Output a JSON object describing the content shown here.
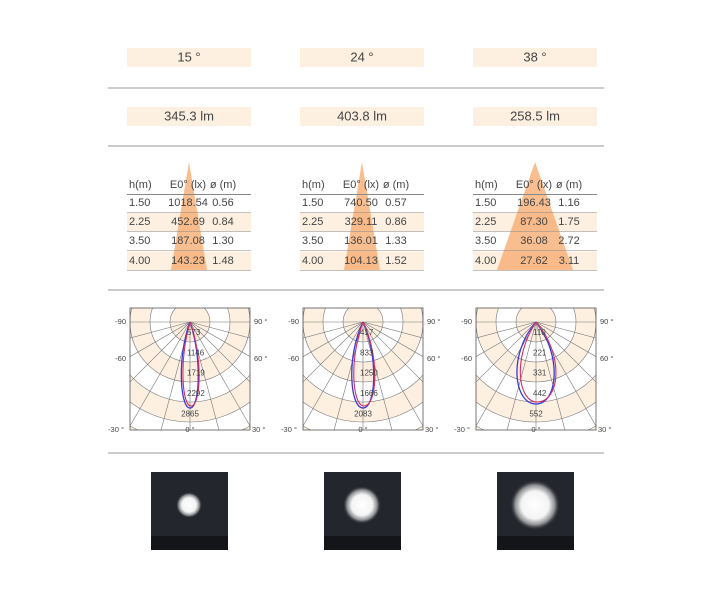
{
  "columns": [
    {
      "beam_angle": "15 °",
      "lumens": "345.3 lm",
      "table": {
        "header": [
          "h(m)",
          "E0° (lx)",
          "ø (m)"
        ],
        "rows": [
          [
            "1.50",
            "1018.54",
            "0.56"
          ],
          [
            "2.25",
            "452.69",
            "0.84"
          ],
          [
            "3.50",
            "187.08",
            "1.30"
          ],
          [
            "4.00",
            "143.23",
            "1.48"
          ]
        ]
      },
      "polar": {
        "angle_labels": [
          "-90",
          "90 °",
          "-60",
          "60 °",
          "-30 °",
          "0 °",
          "30 °"
        ],
        "radial_labels": [
          "573",
          "1146",
          "1719",
          "2292",
          "2865"
        ]
      }
    },
    {
      "beam_angle": "24 °",
      "lumens": "403.8 lm",
      "table": {
        "header": [
          "h(m)",
          "E0° (lx)",
          "ø (m)"
        ],
        "rows": [
          [
            "1.50",
            "740.50",
            "0.57"
          ],
          [
            "2.25",
            "329.11",
            "0.86"
          ],
          [
            "3.50",
            "136.01",
            "1.33"
          ],
          [
            "4.00",
            "104.13",
            "1.52"
          ]
        ]
      },
      "polar": {
        "angle_labels": [
          "-90",
          "90 °",
          "-60",
          "60 °",
          "-30 °",
          "0 °",
          "30 °"
        ],
        "radial_labels": [
          "417",
          "833",
          "1250",
          "1666",
          "2083"
        ]
      }
    },
    {
      "beam_angle": "38 °",
      "lumens": "258.5 lm",
      "table": {
        "header": [
          "h(m)",
          "E0° (lx)",
          "ø (m)"
        ],
        "rows": [
          [
            "1.50",
            "196.43",
            "1.16"
          ],
          [
            "2.25",
            "87.30",
            "1.75"
          ],
          [
            "3.50",
            "36.08",
            "2.72"
          ],
          [
            "4.00",
            "27.62",
            "3.11"
          ]
        ]
      },
      "polar": {
        "angle_labels": [
          "-90",
          "90 °",
          "-60",
          "60 °",
          "-30 °",
          "0 °",
          "30 °"
        ],
        "radial_labels": [
          "110",
          "221",
          "331",
          "442",
          "552"
        ]
      }
    }
  ]
}
